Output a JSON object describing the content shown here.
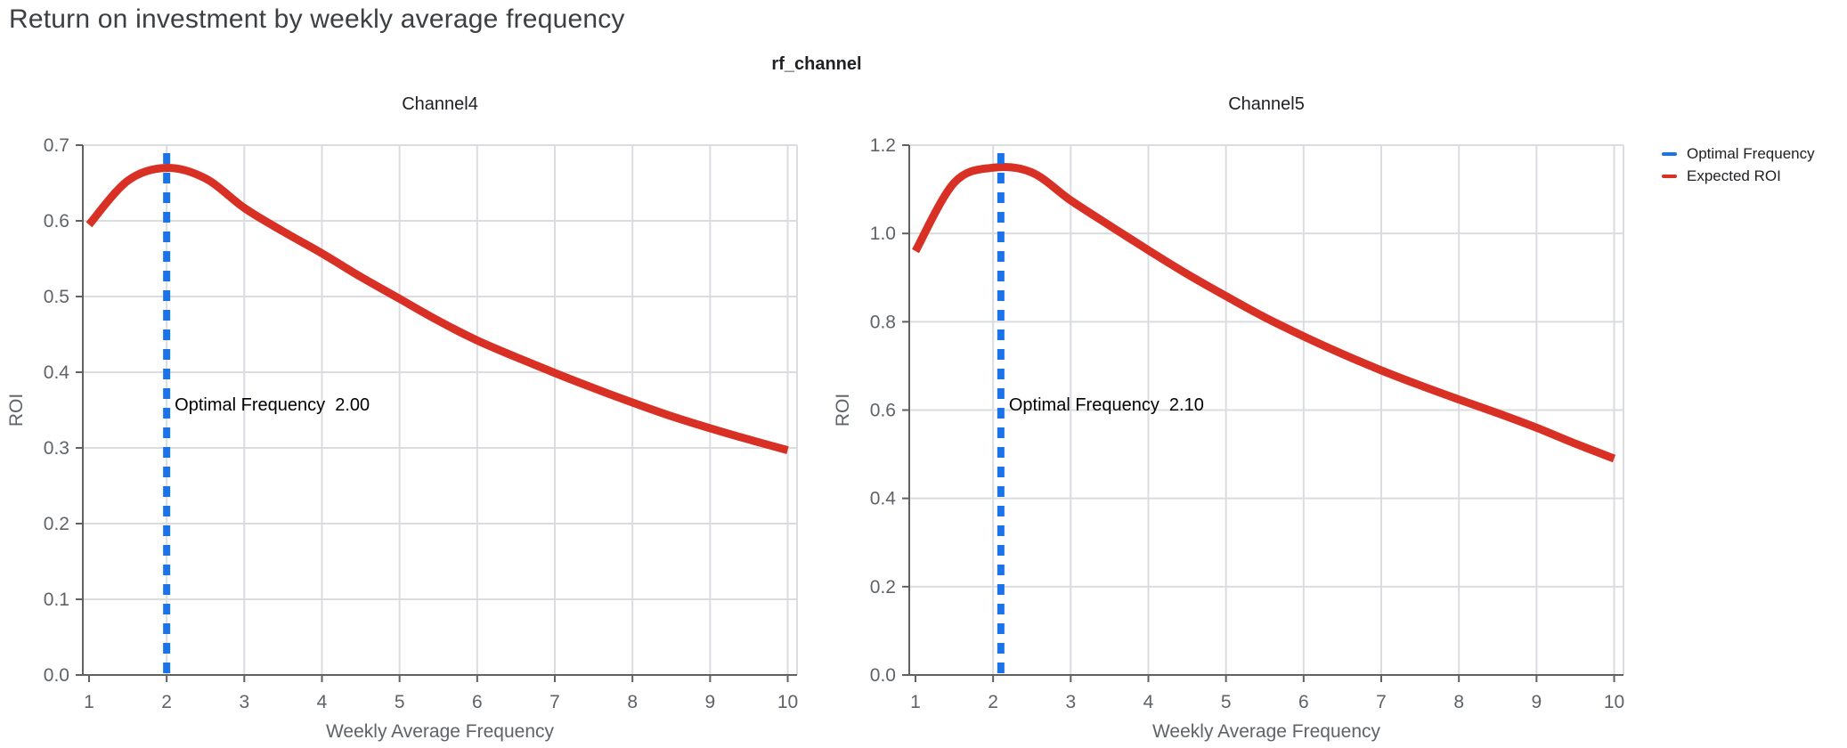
{
  "page": {
    "title": "Return on investment by weekly average frequency",
    "facet_title": "rf_channel"
  },
  "legend": {
    "items": [
      {
        "label": "Optimal Frequency",
        "color": "#1a73e8"
      },
      {
        "label": "Expected ROI",
        "color": "#d93025"
      }
    ]
  },
  "style": {
    "roi_color": "#d93025",
    "optimal_color": "#1a73e8",
    "grid_color": "#dadce0",
    "axis_color": "#616161",
    "tick_label_color": "#5f6368",
    "title_color": "#3c4043",
    "text_color": "#202124",
    "annotation_color": "#000000"
  },
  "chart_data": [
    {
      "type": "line",
      "facet": "Channel4",
      "xlabel": "Weekly Average Frequency",
      "ylabel": "ROI",
      "xlim": [
        0.92,
        10.12
      ],
      "ylim": [
        0,
        0.7
      ],
      "grid": true,
      "x_ticks": [
        {
          "v": 1,
          "label": "1"
        },
        {
          "v": 2,
          "label": "2"
        },
        {
          "v": 3,
          "label": "3"
        },
        {
          "v": 4,
          "label": "4"
        },
        {
          "v": 5,
          "label": "5"
        },
        {
          "v": 6,
          "label": "6"
        },
        {
          "v": 7,
          "label": "7"
        },
        {
          "v": 8,
          "label": "8"
        },
        {
          "v": 9,
          "label": "9"
        },
        {
          "v": 10,
          "label": "10"
        }
      ],
      "y_ticks": [
        {
          "v": 0,
          "label": "0.0"
        },
        {
          "v": 0.1,
          "label": "0.1"
        },
        {
          "v": 0.2,
          "label": "0.2"
        },
        {
          "v": 0.3,
          "label": "0.3"
        },
        {
          "v": 0.4,
          "label": "0.4"
        },
        {
          "v": 0.5,
          "label": "0.5"
        },
        {
          "v": 0.6,
          "label": "0.6"
        },
        {
          "v": 0.7,
          "label": "0.7"
        }
      ],
      "optimal_frequency": 2.0,
      "annotation": "Optimal Frequency  2.00",
      "series": [
        {
          "name": "Expected ROI",
          "x": [
            1,
            1.5,
            2,
            2.5,
            3,
            3.5,
            4,
            4.5,
            5,
            5.5,
            6,
            6.5,
            7,
            7.5,
            8,
            8.5,
            9,
            9.5,
            10
          ],
          "y": [
            0.595,
            0.653,
            0.67,
            0.656,
            0.617,
            0.586,
            0.557,
            0.526,
            0.497,
            0.468,
            0.442,
            0.42,
            0.399,
            0.379,
            0.36,
            0.342,
            0.326,
            0.311,
            0.297
          ]
        }
      ]
    },
    {
      "type": "line",
      "facet": "Channel5",
      "xlabel": "Weekly Average Frequency",
      "ylabel": "ROI",
      "xlim": [
        0.92,
        10.12
      ],
      "ylim": [
        0,
        1.2
      ],
      "grid": true,
      "x_ticks": [
        {
          "v": 1,
          "label": "1"
        },
        {
          "v": 2,
          "label": "2"
        },
        {
          "v": 3,
          "label": "3"
        },
        {
          "v": 4,
          "label": "4"
        },
        {
          "v": 5,
          "label": "5"
        },
        {
          "v": 6,
          "label": "6"
        },
        {
          "v": 7,
          "label": "7"
        },
        {
          "v": 8,
          "label": "8"
        },
        {
          "v": 9,
          "label": "9"
        },
        {
          "v": 10,
          "label": "10"
        }
      ],
      "y_ticks": [
        {
          "v": 0,
          "label": "0.0"
        },
        {
          "v": 0.2,
          "label": "0.2"
        },
        {
          "v": 0.4,
          "label": "0.4"
        },
        {
          "v": 0.6,
          "label": "0.6"
        },
        {
          "v": 0.8,
          "label": "0.8"
        },
        {
          "v": 1.0,
          "label": "1.0"
        },
        {
          "v": 1.2,
          "label": "1.2"
        }
      ],
      "optimal_frequency": 2.1,
      "annotation": "Optimal Frequency  2.10",
      "series": [
        {
          "name": "Expected ROI",
          "x": [
            1,
            1.5,
            2,
            2.5,
            3,
            3.5,
            4,
            4.5,
            5,
            5.5,
            6,
            6.5,
            7,
            7.5,
            8,
            8.5,
            9,
            9.5,
            10
          ],
          "y": [
            0.96,
            1.115,
            1.149,
            1.138,
            1.075,
            1.018,
            0.962,
            0.908,
            0.858,
            0.81,
            0.767,
            0.727,
            0.69,
            0.656,
            0.624,
            0.593,
            0.56,
            0.524,
            0.49
          ]
        }
      ]
    }
  ]
}
